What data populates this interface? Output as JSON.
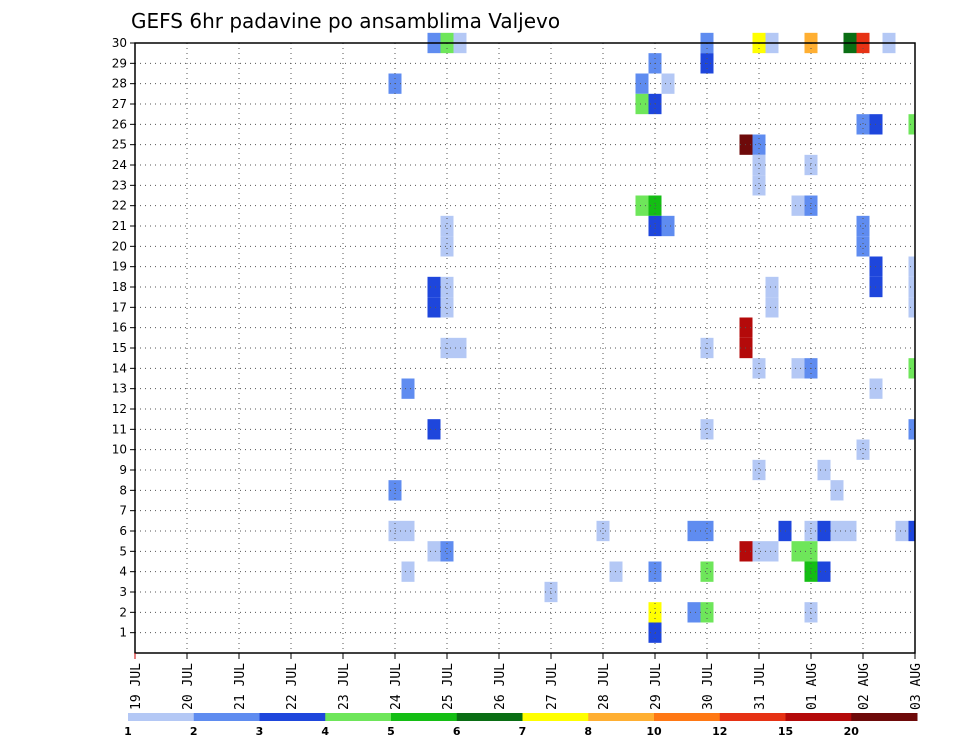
{
  "chart_data": {
    "type": "heatmap",
    "title": "GEFS 6hr padavine po ansamblima Valjevo",
    "x_tick_labels": [
      "19 JUL",
      "20 JUL",
      "21 JUL",
      "22 JUL",
      "23 JUL",
      "24 JUL",
      "25 JUL",
      "26 JUL",
      "27 JUL",
      "28 JUL",
      "29 JUL",
      "30 JUL",
      "31 JUL",
      "01 AUG",
      "02 AUG",
      "03 AUG"
    ],
    "y_tick_labels": [
      "1",
      "2",
      "3",
      "4",
      "5",
      "6",
      "7",
      "8",
      "9",
      "10",
      "11",
      "12",
      "13",
      "14",
      "15",
      "16",
      "17",
      "18",
      "19",
      "20",
      "21",
      "22",
      "23",
      "24",
      "25",
      "26",
      "27",
      "28",
      "29",
      "30"
    ],
    "ylim": [
      1,
      30
    ],
    "grid": true,
    "colorbar": {
      "labels": [
        "1",
        "2",
        "3",
        "4",
        "5",
        "6",
        "7",
        "8",
        "10",
        "12",
        "15",
        "20"
      ],
      "colors": [
        "#b4c8f5",
        "#5f8cf0",
        "#1e46dc",
        "#6ee65a",
        "#14be14",
        "#0a6e14",
        "#ffff00",
        "#ffaf32",
        "#ff7814",
        "#e63214",
        "#b40a0a",
        "#6e0a0a"
      ]
    },
    "cells": [
      {
        "time": "24 JUL 18",
        "member": 30,
        "level": 2
      },
      {
        "time": "25 JUL 00",
        "member": 30,
        "level": 4
      },
      {
        "time": "25 JUL 06",
        "member": 30,
        "level": 1
      },
      {
        "time": "30 JUL 00",
        "member": 30,
        "level": 2
      },
      {
        "time": "31 JUL 00",
        "member": 30,
        "level": 7
      },
      {
        "time": "31 JUL 06",
        "member": 30,
        "level": 1
      },
      {
        "time": "01 AUG 00",
        "member": 30,
        "level": 8
      },
      {
        "time": "01 AUG 18",
        "member": 30,
        "level": 6
      },
      {
        "time": "02 AUG 00",
        "member": 30,
        "level": 10
      },
      {
        "time": "02 AUG 12",
        "member": 30,
        "level": 1
      },
      {
        "time": "29 JUL 00",
        "member": 29,
        "level": 2
      },
      {
        "time": "30 JUL 00",
        "member": 29,
        "level": 3
      },
      {
        "time": "24 JUL 00",
        "member": 28,
        "level": 2
      },
      {
        "time": "28 JUL 18",
        "member": 28,
        "level": 2
      },
      {
        "time": "29 JUL 06",
        "member": 28,
        "level": 1
      },
      {
        "time": "28 JUL 18",
        "member": 27,
        "level": 4
      },
      {
        "time": "29 JUL 00",
        "member": 27,
        "level": 3
      },
      {
        "time": "02 AUG 00",
        "member": 26,
        "level": 2
      },
      {
        "time": "02 AUG 06",
        "member": 26,
        "level": 3
      },
      {
        "time": "03 AUG 00",
        "member": 26,
        "level": 4
      },
      {
        "time": "30 JUL 18",
        "member": 25,
        "level": 12
      },
      {
        "time": "31 JUL 00",
        "member": 25,
        "level": 2
      },
      {
        "time": "31 JUL 00",
        "member": 24,
        "level": 1
      },
      {
        "time": "01 AUG 00",
        "member": 24,
        "level": 1
      },
      {
        "time": "31 JUL 00",
        "member": 23,
        "level": 1
      },
      {
        "time": "28 JUL 18",
        "member": 22,
        "level": 4
      },
      {
        "time": "29 JUL 00",
        "member": 22,
        "level": 5
      },
      {
        "time": "31 JUL 18",
        "member": 22,
        "level": 1
      },
      {
        "time": "01 AUG 00",
        "member": 22,
        "level": 2
      },
      {
        "time": "25 JUL 00",
        "member": 21,
        "level": 1
      },
      {
        "time": "29 JUL 00",
        "member": 21,
        "level": 3
      },
      {
        "time": "29 JUL 06",
        "member": 21,
        "level": 2
      },
      {
        "time": "02 AUG 00",
        "member": 21,
        "level": 2
      },
      {
        "time": "25 JUL 00",
        "member": 20,
        "level": 1
      },
      {
        "time": "02 AUG 00",
        "member": 20,
        "level": 2
      },
      {
        "time": "02 AUG 06",
        "member": 19,
        "level": 3
      },
      {
        "time": "03 AUG 00",
        "member": 19,
        "level": 1
      },
      {
        "time": "31 JUL 06",
        "member": 18,
        "level": 1
      },
      {
        "time": "24 JUL 18",
        "member": 18,
        "level": 3
      },
      {
        "time": "25 JUL 00",
        "member": 18,
        "level": 1
      },
      {
        "time": "02 AUG 06",
        "member": 18,
        "level": 3
      },
      {
        "time": "03 AUG 00",
        "member": 18,
        "level": 1
      },
      {
        "time": "24 JUL 18",
        "member": 17,
        "level": 3
      },
      {
        "time": "25 JUL 00",
        "member": 17,
        "level": 1
      },
      {
        "time": "31 JUL 06",
        "member": 17,
        "level": 1
      },
      {
        "time": "03 AUG 00",
        "member": 17,
        "level": 1
      },
      {
        "time": "30 JUL 18",
        "member": 16,
        "level": 11
      },
      {
        "time": "25 JUL 00",
        "member": 15,
        "level": 1
      },
      {
        "time": "25 JUL 06",
        "member": 15,
        "level": 1
      },
      {
        "time": "30 JUL 00",
        "member": 15,
        "level": 1
      },
      {
        "time": "30 JUL 18",
        "member": 15,
        "level": 11
      },
      {
        "time": "31 JUL 00",
        "member": 14,
        "level": 1
      },
      {
        "time": "31 JUL 18",
        "member": 14,
        "level": 1
      },
      {
        "time": "01 AUG 00",
        "member": 14,
        "level": 2
      },
      {
        "time": "03 AUG 00",
        "member": 14,
        "level": 4
      },
      {
        "time": "24 JUL 06",
        "member": 13,
        "level": 2
      },
      {
        "time": "02 AUG 06",
        "member": 13,
        "level": 1
      },
      {
        "time": "24 JUL 18",
        "member": 11,
        "level": 3
      },
      {
        "time": "30 JUL 00",
        "member": 11,
        "level": 1
      },
      {
        "time": "03 AUG 00",
        "member": 11,
        "level": 2
      },
      {
        "time": "02 AUG 00",
        "member": 10,
        "level": 1
      },
      {
        "time": "31 JUL 00",
        "member": 9,
        "level": 1
      },
      {
        "time": "01 AUG 06",
        "member": 9,
        "level": 1
      },
      {
        "time": "24 JUL 00",
        "member": 8,
        "level": 2
      },
      {
        "time": "01 AUG 12",
        "member": 8,
        "level": 1
      },
      {
        "time": "24 JUL 00",
        "member": 6,
        "level": 1
      },
      {
        "time": "24 JUL 06",
        "member": 6,
        "level": 1
      },
      {
        "time": "28 JUL 00",
        "member": 6,
        "level": 1
      },
      {
        "time": "29 JUL 18",
        "member": 6,
        "level": 2
      },
      {
        "time": "30 JUL 00",
        "member": 6,
        "level": 2
      },
      {
        "time": "31 JUL 12",
        "member": 6,
        "level": 3
      },
      {
        "time": "01 AUG 00",
        "member": 6,
        "level": 1
      },
      {
        "time": "01 AUG 06",
        "member": 6,
        "level": 3
      },
      {
        "time": "01 AUG 12",
        "member": 6,
        "level": 1
      },
      {
        "time": "01 AUG 18",
        "member": 6,
        "level": 1
      },
      {
        "time": "02 AUG 18",
        "member": 6,
        "level": 1
      },
      {
        "time": "03 AUG 00",
        "member": 6,
        "level": 3
      },
      {
        "time": "24 JUL 18",
        "member": 5,
        "level": 1
      },
      {
        "time": "25 JUL 00",
        "member": 5,
        "level": 2
      },
      {
        "time": "30 JUL 18",
        "member": 5,
        "level": 11
      },
      {
        "time": "31 JUL 00",
        "member": 5,
        "level": 1
      },
      {
        "time": "31 JUL 06",
        "member": 5,
        "level": 1
      },
      {
        "time": "31 JUL 18",
        "member": 5,
        "level": 4
      },
      {
        "time": "01 AUG 00",
        "member": 5,
        "level": 4
      },
      {
        "time": "24 JUL 06",
        "member": 4,
        "level": 1
      },
      {
        "time": "28 JUL 06",
        "member": 4,
        "level": 1
      },
      {
        "time": "29 JUL 00",
        "member": 4,
        "level": 2
      },
      {
        "time": "30 JUL 00",
        "member": 4,
        "level": 4
      },
      {
        "time": "01 AUG 00",
        "member": 4,
        "level": 5
      },
      {
        "time": "01 AUG 06",
        "member": 4,
        "level": 3
      },
      {
        "time": "27 JUL 00",
        "member": 3,
        "level": 1
      },
      {
        "time": "29 JUL 00",
        "member": 2,
        "level": 7
      },
      {
        "time": "29 JUL 18",
        "member": 2,
        "level": 2
      },
      {
        "time": "30 JUL 00",
        "member": 2,
        "level": 4
      },
      {
        "time": "01 AUG 00",
        "member": 2,
        "level": 1
      },
      {
        "time": "29 JUL 00",
        "member": 1,
        "level": 3
      }
    ]
  }
}
